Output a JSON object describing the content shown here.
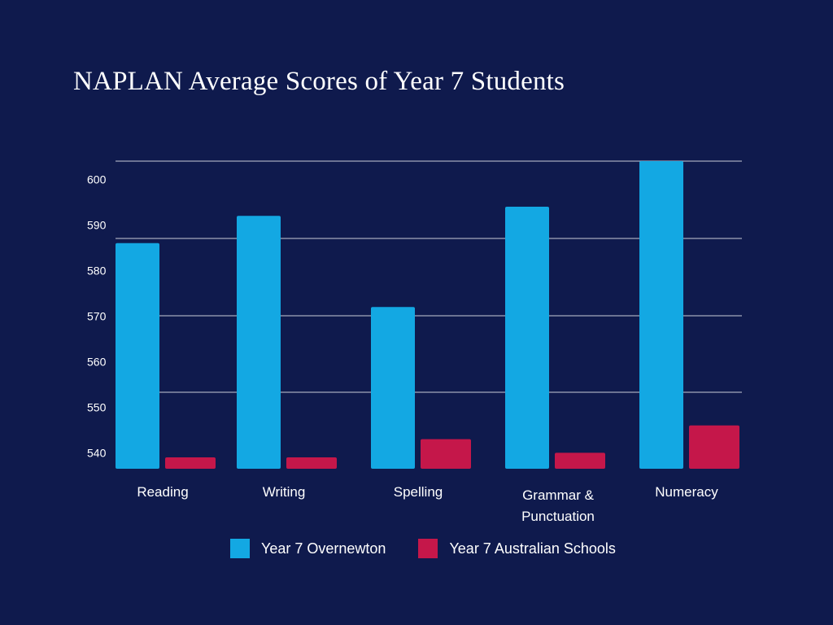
{
  "chart_data": {
    "type": "bar",
    "title": "NAPLAN Average Scores of Year 7 Students",
    "categories": [
      [
        "Reading"
      ],
      [
        "Writing"
      ],
      [
        "Spelling"
      ],
      [
        "Grammar &",
        "Punctuation"
      ],
      [
        "Numeracy"
      ]
    ],
    "series": [
      {
        "name": "Year 7 Overnewton",
        "color": "#13a8e3",
        "values": [
          586,
          592,
          572,
          594,
          604
        ]
      },
      {
        "name": "Year 7 Australian Schools",
        "color": "#c5174a",
        "values": [
          539,
          539,
          543,
          540,
          546
        ]
      }
    ],
    "y_ticks": [
      540,
      550,
      560,
      570,
      580,
      590,
      600
    ],
    "ylim": [
      536.5,
      604
    ],
    "xlabel": "",
    "ylabel": "",
    "legend": "bottom",
    "colors": {
      "background": "#0f1a4d",
      "gridline": "#c8ccd8",
      "text": "#ffffff"
    }
  }
}
